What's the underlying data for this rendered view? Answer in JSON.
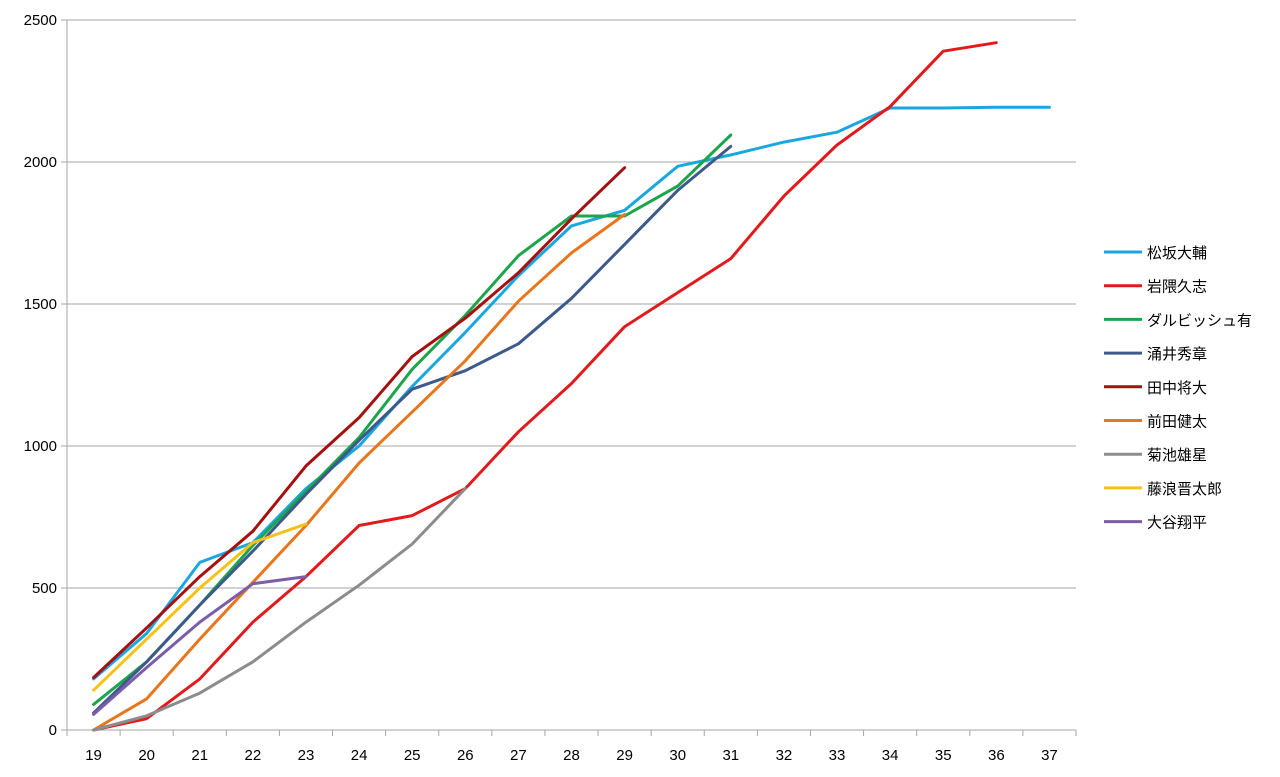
{
  "chart_data": {
    "type": "line",
    "title": "",
    "xlabel": "",
    "ylabel": "",
    "x": [
      19,
      20,
      21,
      22,
      23,
      24,
      25,
      26,
      27,
      28,
      29,
      30,
      31,
      32,
      33,
      34,
      35,
      36,
      37
    ],
    "ylim": [
      0,
      2500
    ],
    "yticks": [
      0,
      500,
      1000,
      1500,
      2000,
      2500
    ],
    "grid": "horizontal",
    "legend_position": "right",
    "series": [
      {
        "name": "松坂大輔",
        "color": "#1aa7e0",
        "values": [
          180,
          340,
          590,
          660,
          850,
          1000,
          1210,
          1400,
          1600,
          1775,
          1830,
          1985,
          2025,
          2070,
          2105,
          2190,
          2190,
          2193,
          2193
        ]
      },
      {
        "name": "岩隈久志",
        "color": "#e31a1c",
        "values": [
          0,
          40,
          180,
          380,
          540,
          720,
          755,
          850,
          1050,
          1220,
          1420,
          1540,
          1660,
          1880,
          2060,
          2195,
          2390,
          2420,
          null
        ]
      },
      {
        "name": "ダルビッシュ有",
        "color": "#1ea44b",
        "values": [
          90,
          240,
          440,
          650,
          840,
          1030,
          1270,
          1460,
          1670,
          1810,
          1810,
          1915,
          2095,
          null,
          null,
          null,
          null,
          null,
          null
        ]
      },
      {
        "name": "涌井秀章",
        "color": "#3d5a8a",
        "values": [
          60,
          240,
          440,
          630,
          830,
          1020,
          1200,
          1265,
          1360,
          1520,
          1710,
          1900,
          2055,
          null,
          null,
          null,
          null,
          null,
          null
        ]
      },
      {
        "name": "田中将大",
        "color": "#a51010",
        "values": [
          185,
          360,
          540,
          700,
          930,
          1100,
          1315,
          1450,
          1610,
          1800,
          1980,
          null,
          null,
          null,
          null,
          null,
          null,
          null,
          null
        ]
      },
      {
        "name": "前田健太",
        "color": "#e8761d",
        "values": [
          0,
          110,
          320,
          520,
          720,
          940,
          1120,
          1300,
          1510,
          1680,
          1815,
          null,
          null,
          null,
          null,
          null,
          null,
          null,
          null
        ]
      },
      {
        "name": "菊池雄星",
        "color": "#8c8c8c",
        "values": [
          0,
          50,
          130,
          240,
          380,
          510,
          655,
          850,
          null,
          null,
          null,
          null,
          null,
          null,
          null,
          null,
          null,
          null,
          null
        ]
      },
      {
        "name": "藤浪晋太郎",
        "color": "#f6c21a",
        "values": [
          140,
          320,
          500,
          660,
          725,
          null,
          null,
          null,
          null,
          null,
          null,
          null,
          null,
          null,
          null,
          null,
          null,
          null,
          null
        ]
      },
      {
        "name": "大谷翔平",
        "color": "#7b5ea7",
        "values": [
          55,
          220,
          380,
          515,
          540,
          null,
          null,
          null,
          null,
          null,
          null,
          null,
          null,
          null,
          null,
          null,
          null,
          null,
          null
        ]
      }
    ]
  }
}
